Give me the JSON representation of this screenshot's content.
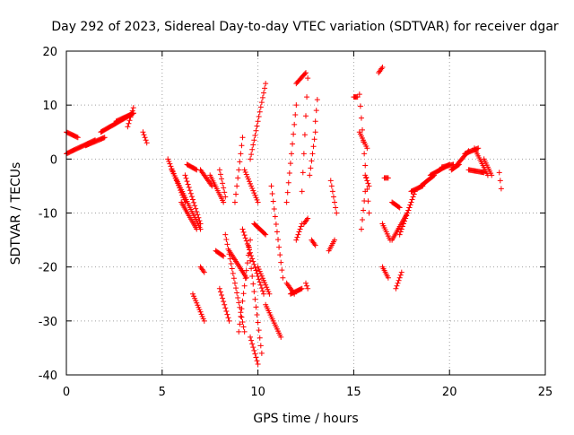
{
  "chart_data": {
    "type": "scatter",
    "title": "Day 292 of 2023, Sidereal Day-to-day VTEC variation (SDTVAR) for receiver dgar",
    "xlabel": "GPS time / hours",
    "ylabel": "SDTVAR / TECUs",
    "xlim": [
      0,
      25
    ],
    "ylim": [
      -40,
      20
    ],
    "x_ticks": [
      0,
      5,
      10,
      15,
      20,
      25
    ],
    "y_ticks": [
      -40,
      -30,
      -20,
      -10,
      0,
      10,
      20
    ],
    "grid": true,
    "marker": "+",
    "color": "#ff0000",
    "tracks": [
      {
        "t0": 0.0,
        "t1": 1.5,
        "v0": 1.0,
        "v1": 3.5
      },
      {
        "t0": 0.0,
        "t1": 0.6,
        "v0": 5.0,
        "v1": 4.0
      },
      {
        "t0": 1.0,
        "t1": 2.0,
        "v0": 2.5,
        "v1": 4.0
      },
      {
        "t0": 1.8,
        "t1": 3.5,
        "v0": 5.0,
        "v1": 8.5
      },
      {
        "t0": 2.6,
        "t1": 3.5,
        "v0": 7.0,
        "v1": 8.5
      },
      {
        "t0": 3.2,
        "t1": 3.5,
        "v0": 6.0,
        "v1": 9.5
      },
      {
        "t0": 4.0,
        "t1": 4.2,
        "v0": 5.0,
        "v1": 3.0
      },
      {
        "t0": 5.3,
        "t1": 6.2,
        "v0": 0.0,
        "v1": -8.0
      },
      {
        "t0": 5.5,
        "t1": 7.0,
        "v0": -2.0,
        "v1": -13.0
      },
      {
        "t0": 6.0,
        "t1": 6.8,
        "v0": -8.0,
        "v1": -13.0
      },
      {
        "t0": 6.2,
        "t1": 7.0,
        "v0": -3.0,
        "v1": -12.0
      },
      {
        "t0": 6.3,
        "t1": 6.8,
        "v0": -1.0,
        "v1": -2.0
      },
      {
        "t0": 6.6,
        "t1": 7.2,
        "v0": -25.0,
        "v1": -30.0
      },
      {
        "t0": 7.0,
        "t1": 7.2,
        "v0": -20.0,
        "v1": -21.0
      },
      {
        "t0": 7.0,
        "t1": 7.6,
        "v0": -2.0,
        "v1": -5.0
      },
      {
        "t0": 7.5,
        "t1": 8.2,
        "v0": -3.0,
        "v1": -8.0
      },
      {
        "t0": 7.8,
        "t1": 8.2,
        "v0": -17.0,
        "v1": -18.0
      },
      {
        "t0": 8.0,
        "t1": 8.5,
        "v0": -24.0,
        "v1": -30.0
      },
      {
        "t0": 8.0,
        "t1": 8.3,
        "v0": -2.0,
        "v1": -7.0
      },
      {
        "t0": 8.3,
        "t1": 9.3,
        "v0": -14.0,
        "v1": -32.0
      },
      {
        "t0": 8.8,
        "t1": 9.2,
        "v0": -8.0,
        "v1": 4.0
      },
      {
        "t0": 9.0,
        "t1": 9.6,
        "v0": -32.0,
        "v1": -15.0
      },
      {
        "t0": 8.5,
        "t1": 9.4,
        "v0": -17.0,
        "v1": -22.0
      },
      {
        "t0": 9.2,
        "t1": 10.3,
        "v0": -13.0,
        "v1": -25.0
      },
      {
        "t0": 9.3,
        "t1": 10.0,
        "v0": -2.0,
        "v1": -8.0
      },
      {
        "t0": 9.5,
        "t1": 10.2,
        "v0": -16.0,
        "v1": -36.0
      },
      {
        "t0": 9.6,
        "t1": 10.0,
        "v0": -33.0,
        "v1": -38.0
      },
      {
        "t0": 9.6,
        "t1": 10.4,
        "v0": 0.0,
        "v1": 14.0
      },
      {
        "t0": 9.8,
        "t1": 10.4,
        "v0": -12.0,
        "v1": -14.0
      },
      {
        "t0": 10.0,
        "t1": 10.6,
        "v0": -20.0,
        "v1": -25.0
      },
      {
        "t0": 10.4,
        "t1": 11.2,
        "v0": -27.0,
        "v1": -33.0
      },
      {
        "t0": 10.7,
        "t1": 11.3,
        "v0": -5.0,
        "v1": -22.0
      },
      {
        "t0": 11.5,
        "t1": 11.9,
        "v0": -23.0,
        "v1": -25.0
      },
      {
        "t0": 11.7,
        "t1": 12.3,
        "v0": -25.0,
        "v1": -24.0
      },
      {
        "t0": 11.5,
        "t1": 12.0,
        "v0": -8.0,
        "v1": 10.0
      },
      {
        "t0": 12.0,
        "t1": 12.5,
        "v0": 14.0,
        "v1": 16.0
      },
      {
        "t0": 12.0,
        "t1": 12.3,
        "v0": -15.0,
        "v1": -12.0
      },
      {
        "t0": 12.3,
        "t1": 12.6,
        "v0": -6.0,
        "v1": 15.0
      },
      {
        "t0": 12.4,
        "t1": 12.6,
        "v0": -12.0,
        "v1": -11.0
      },
      {
        "t0": 12.5,
        "t1": 12.6,
        "v0": -23.0,
        "v1": -24.0
      },
      {
        "t0": 12.7,
        "t1": 13.0,
        "v0": -3.0,
        "v1": 5.0
      },
      {
        "t0": 12.8,
        "t1": 13.0,
        "v0": -15.0,
        "v1": -16.0
      },
      {
        "t0": 13.0,
        "t1": 13.1,
        "v0": 7.0,
        "v1": 11.0
      },
      {
        "t0": 13.7,
        "t1": 14.0,
        "v0": -17.0,
        "v1": -15.0
      },
      {
        "t0": 13.8,
        "t1": 14.1,
        "v0": -4.0,
        "v1": -10.0
      },
      {
        "t0": 15.0,
        "t1": 15.2,
        "v0": 11.5,
        "v1": 11.5
      },
      {
        "t0": 15.3,
        "t1": 15.8,
        "v0": 12.0,
        "v1": -10.0
      },
      {
        "t0": 15.3,
        "t1": 15.7,
        "v0": 5.0,
        "v1": 2.0
      },
      {
        "t0": 15.4,
        "t1": 15.6,
        "v0": -13.0,
        "v1": -6.0
      },
      {
        "t0": 15.6,
        "t1": 15.8,
        "v0": -3.0,
        "v1": -5.0
      },
      {
        "t0": 16.3,
        "t1": 16.5,
        "v0": 16.0,
        "v1": 17.0
      },
      {
        "t0": 16.5,
        "t1": 16.8,
        "v0": -20.0,
        "v1": -22.0
      },
      {
        "t0": 16.5,
        "t1": 16.9,
        "v0": -12.0,
        "v1": -15.0
      },
      {
        "t0": 16.6,
        "t1": 16.8,
        "v0": -3.5,
        "v1": -3.5
      },
      {
        "t0": 17.0,
        "t1": 17.4,
        "v0": -8.0,
        "v1": -9.0
      },
      {
        "t0": 17.0,
        "t1": 17.8,
        "v0": -15.0,
        "v1": -10.0
      },
      {
        "t0": 17.4,
        "t1": 18.2,
        "v0": -14.0,
        "v1": -6.0
      },
      {
        "t0": 17.2,
        "t1": 17.5,
        "v0": -24.0,
        "v1": -21.0
      },
      {
        "t0": 17.6,
        "t1": 18.0,
        "v0": -12.0,
        "v1": -8.0
      },
      {
        "t0": 18.0,
        "t1": 18.6,
        "v0": -6.0,
        "v1": -5.0
      },
      {
        "t0": 18.5,
        "t1": 19.2,
        "v0": -5.0,
        "v1": -3.0
      },
      {
        "t0": 19.0,
        "t1": 20.0,
        "v0": -3.0,
        "v1": -1.0
      },
      {
        "t0": 19.6,
        "t1": 20.2,
        "v0": -1.5,
        "v1": -1.0
      },
      {
        "t0": 20.1,
        "t1": 20.5,
        "v0": -2.0,
        "v1": -1.0
      },
      {
        "t0": 20.4,
        "t1": 21.0,
        "v0": -1.0,
        "v1": 1.5
      },
      {
        "t0": 20.8,
        "t1": 21.5,
        "v0": 1.0,
        "v1": 2.0
      },
      {
        "t0": 21.0,
        "t1": 21.8,
        "v0": -2.0,
        "v1": -2.5
      },
      {
        "t0": 21.3,
        "t1": 22.0,
        "v0": 2.0,
        "v1": -3.0
      },
      {
        "t0": 21.8,
        "t1": 22.2,
        "v0": 0.0,
        "v1": -3.0
      },
      {
        "t0": 22.6,
        "t1": 22.7,
        "v0": -2.5,
        "v1": -5.5
      }
    ]
  }
}
